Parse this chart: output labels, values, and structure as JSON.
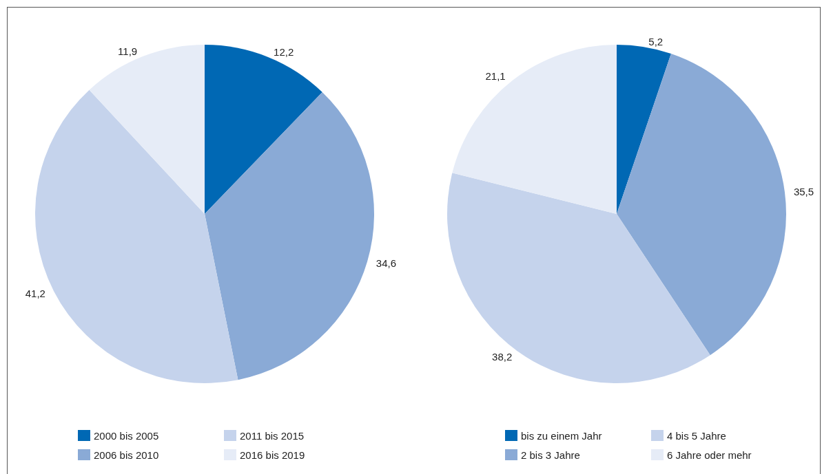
{
  "chart_data": [
    {
      "type": "pie",
      "categories": [
        "2000 bis 2005",
        "2006 bis 2010",
        "2011 bis 2015",
        "2016 bis 2019"
      ],
      "values": [
        12.2,
        34.6,
        41.2,
        11.9
      ],
      "colors": [
        "#0068b4",
        "#8aaad6",
        "#c5d3ec",
        "#e6ecf7"
      ],
      "value_labels": [
        "12,2",
        "34,6",
        "41,2",
        "11,9"
      ],
      "legend": "bottom"
    },
    {
      "type": "pie",
      "categories": [
        "bis zu einem Jahr",
        "2 bis 3 Jahre",
        "4 bis 5 Jahre",
        "6 Jahre oder mehr"
      ],
      "values": [
        5.2,
        35.5,
        38.2,
        21.1
      ],
      "colors": [
        "#0068b4",
        "#8aaad6",
        "#c5d3ec",
        "#e6ecf7"
      ],
      "value_labels": [
        "5,2",
        "35,5",
        "38,2",
        "21,1"
      ],
      "legend": "bottom"
    }
  ]
}
